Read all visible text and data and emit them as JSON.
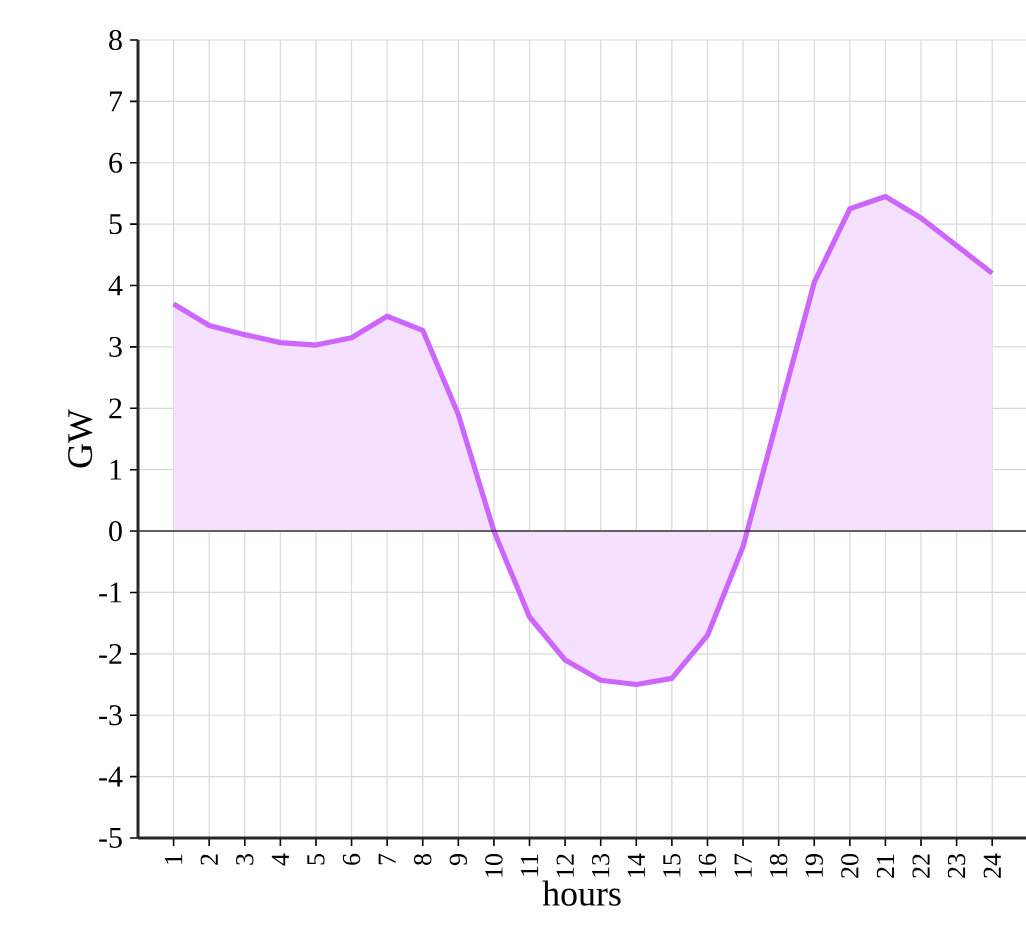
{
  "chart_data": {
    "type": "area",
    "xlabel": "hours",
    "ylabel": "GW",
    "categories": [
      "1",
      "2",
      "3",
      "4",
      "5",
      "6",
      "7",
      "8",
      "9",
      "10",
      "11",
      "12",
      "13",
      "14",
      "15",
      "16",
      "17",
      "18",
      "19",
      "20",
      "21",
      "22",
      "23",
      "24"
    ],
    "series": [
      {
        "color": "#cc66ff",
        "values": [
          3.7,
          3.35,
          3.2,
          3.07,
          3.03,
          3.15,
          3.5,
          3.27,
          1.9,
          0.0,
          -1.4,
          -2.1,
          -2.43,
          -2.5,
          -2.4,
          -1.7,
          -0.25,
          1.9,
          4.05,
          5.25,
          5.45,
          5.1,
          4.65,
          4.2
        ]
      }
    ],
    "ylim": [
      -5,
      8
    ],
    "yticks": [
      -5,
      -4,
      -3,
      -2,
      -1,
      0,
      1,
      2,
      3,
      4,
      5,
      6,
      7,
      8
    ],
    "grid": true,
    "marker": "none",
    "line_style": "solid",
    "ref_lines": [
      {
        "axis": "y",
        "value": 0,
        "color": "#333333"
      }
    ]
  }
}
